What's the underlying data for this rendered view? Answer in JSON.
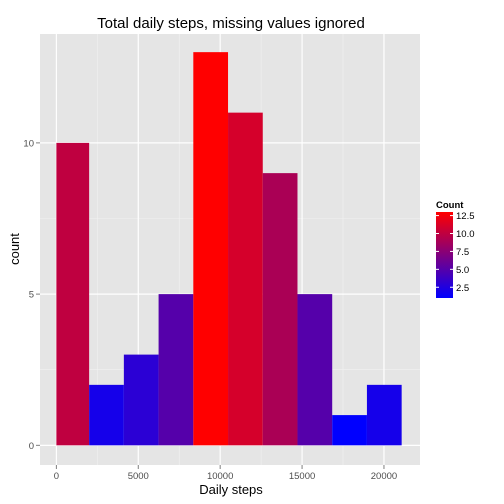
{
  "chart_data": {
    "type": "bar",
    "subtype": "histogram",
    "title": "Total daily steps, missing values ignored",
    "xlabel": "Daily steps",
    "ylabel": "count",
    "bins": [
      {
        "x0": 0,
        "x1": 2000,
        "count": 10
      },
      {
        "x0": 2000,
        "x1": 4120,
        "count": 2
      },
      {
        "x0": 4120,
        "x1": 6240,
        "count": 3
      },
      {
        "x0": 6240,
        "x1": 8360,
        "count": 5
      },
      {
        "x0": 8360,
        "x1": 10480,
        "count": 13
      },
      {
        "x0": 10480,
        "x1": 12600,
        "count": 11
      },
      {
        "x0": 12600,
        "x1": 14720,
        "count": 9
      },
      {
        "x0": 14720,
        "x1": 16840,
        "count": 5
      },
      {
        "x0": 16840,
        "x1": 18960,
        "count": 1
      },
      {
        "x0": 18960,
        "x1": 21080,
        "count": 2
      }
    ],
    "xlim": [
      -1000,
      22200
    ],
    "ylim": [
      -0.65,
      13.6
    ],
    "x_ticks": [
      0,
      5000,
      10000,
      15000,
      20000
    ],
    "x_tick_labels": [
      "0",
      "5000",
      "10000",
      "15000",
      "20000"
    ],
    "y_ticks": [
      0,
      5,
      10
    ],
    "y_tick_labels": [
      "0",
      "5",
      "10"
    ],
    "grid": true,
    "background": "#e5e5e5",
    "color_scale": {
      "low_color": "#0000ff",
      "high_color": "#ff0000",
      "min": 1,
      "max": 13
    },
    "legend": {
      "title": "Count",
      "position": "right",
      "labels": [
        {
          "value": 12.5,
          "text": "12.5"
        },
        {
          "value": 10.0,
          "text": "10.0"
        },
        {
          "value": 7.5,
          "text": "7.5"
        },
        {
          "value": 5.0,
          "text": "5.0"
        },
        {
          "value": 2.5,
          "text": "2.5"
        }
      ]
    }
  }
}
